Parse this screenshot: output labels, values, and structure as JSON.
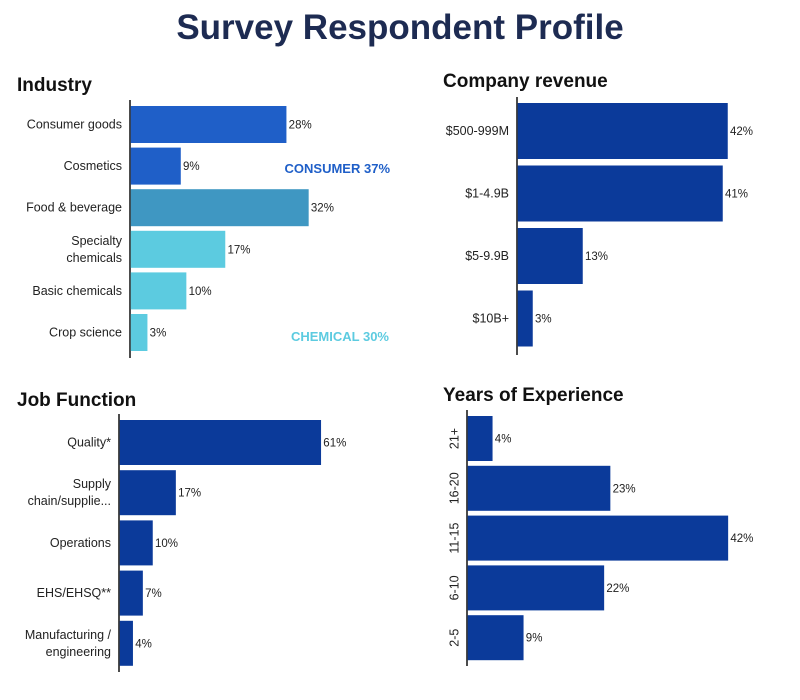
{
  "title": "Survey Respondent Profile",
  "colors": {
    "navy": "#0b3a9a",
    "consumer": "#1f5fc8",
    "food": "#3f97c2",
    "chemical": "#5ccbe0",
    "title": "#1d2b52"
  },
  "chart_data": [
    {
      "type": "bar",
      "orientation": "horizontal",
      "title": "Industry",
      "categories": [
        "Consumer goods",
        "Cosmetics",
        "Food & beverage",
        "Specialty chemicals",
        "Basic chemicals",
        "Crop science"
      ],
      "values": [
        28,
        9,
        32,
        17,
        10,
        3
      ],
      "value_labels": [
        "28%",
        "9%",
        "32%",
        "17%",
        "10%",
        "3%"
      ],
      "bar_colors": [
        "#1f5fc8",
        "#1f5fc8",
        "#3f97c2",
        "#5ccbe0",
        "#5ccbe0",
        "#5ccbe0"
      ],
      "annotations": [
        {
          "text": "CONSUMER 37%",
          "color": "#1f5fc8"
        },
        {
          "text": "CHEMICAL 30%",
          "color": "#5ccbe0"
        }
      ]
    },
    {
      "type": "bar",
      "orientation": "horizontal",
      "title": "Company revenue",
      "categories": [
        "$500-999M",
        "$1-4.9B",
        "$5-9.9B",
        "$10B+"
      ],
      "values": [
        42,
        41,
        13,
        3
      ],
      "value_labels": [
        "42%",
        "41%",
        "13%",
        "3%"
      ]
    },
    {
      "type": "bar",
      "orientation": "horizontal",
      "title": "Job Function",
      "categories": [
        "Quality*",
        "Supply chain/supplie...",
        "Operations",
        "EHS/EHSQ**",
        "Manufacturing / engineering"
      ],
      "values": [
        61,
        17,
        10,
        7,
        4
      ],
      "value_labels": [
        "61%",
        "17%",
        "10%",
        "7%",
        "4%"
      ]
    },
    {
      "type": "bar",
      "orientation": "horizontal",
      "title": "Years of Experience",
      "categories": [
        "21+",
        "16-20",
        "11-15",
        "6-10",
        "2-5"
      ],
      "values": [
        4,
        23,
        42,
        22,
        9
      ],
      "value_labels": [
        "4%",
        "23%",
        "42%",
        "22%",
        "9%"
      ]
    }
  ]
}
